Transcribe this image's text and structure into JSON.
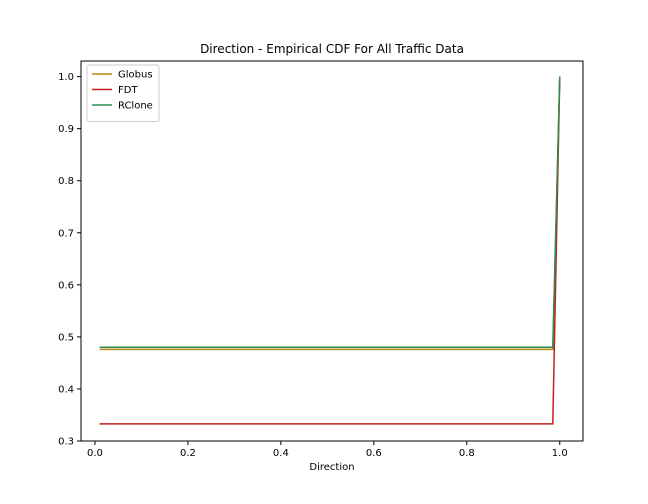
{
  "chart_data": {
    "type": "line",
    "title": "Direction - Empirical CDF For All Traffic Data",
    "xlabel": "Direction",
    "ylabel": "",
    "xlim": [
      -0.03,
      1.05
    ],
    "ylim": [
      0.3,
      1.03
    ],
    "xticks": [
      0.0,
      0.2,
      0.4,
      0.6,
      0.8,
      1.0
    ],
    "xtick_labels": [
      "0.0",
      "0.2",
      "0.4",
      "0.6",
      "0.8",
      "1.0"
    ],
    "yticks": [
      0.3,
      0.4,
      0.5,
      0.6,
      0.7,
      0.8,
      0.9,
      1.0
    ],
    "ytick_labels": [
      "0.3",
      "0.4",
      "0.5",
      "0.6",
      "0.7",
      "0.8",
      "0.9",
      "1.0"
    ],
    "grid": false,
    "legend_position": "top-left",
    "series": [
      {
        "name": "Globus",
        "color": "#b8860b",
        "x": [
          0.01,
          0.985,
          1.0
        ],
        "y": [
          0.476,
          0.476,
          1.0
        ]
      },
      {
        "name": "FDT",
        "color": "#c0201c",
        "x": [
          0.01,
          0.985,
          1.0
        ],
        "y": [
          0.333,
          0.333,
          1.0
        ]
      },
      {
        "name": "RClone",
        "color": "#2e8b57",
        "x": [
          0.01,
          0.985,
          1.0
        ],
        "y": [
          0.48,
          0.48,
          1.0
        ]
      }
    ]
  }
}
